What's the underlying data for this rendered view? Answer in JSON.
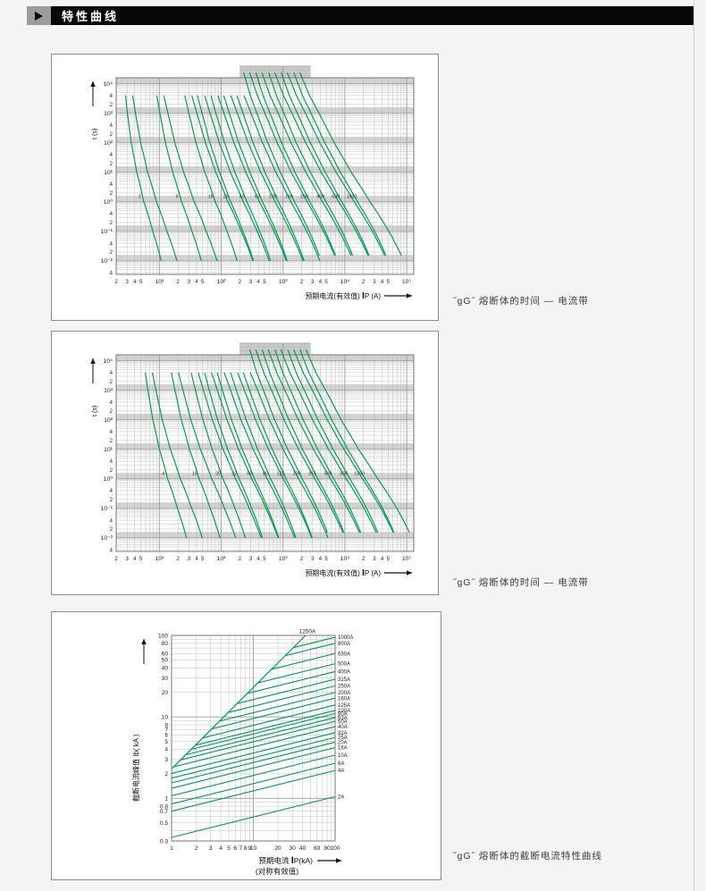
{
  "header": {
    "title": "特性曲线"
  },
  "captions": {
    "c1": "˝gG˝ 熔断体的时间 — 电流带",
    "c2": "˝gG˝ 熔断体的时间 — 电流带",
    "c3": "˝gG˝ 熔断体的截断电流特性曲线"
  },
  "colors": {
    "curve_green": "#009a4e",
    "grid": "#b8b8b8",
    "grid_major": "#9b9b9b",
    "band": "#d2d2d2",
    "tab": "#c9c9c9",
    "plot_border": "#777777",
    "text": "#222222",
    "panel_border": "#8d8d8d",
    "header_bg": "#070707",
    "marker_gray": "#9c9c9c"
  },
  "chart_data": [
    {
      "id": "tc-band-1",
      "type": "line",
      "scale": "log-log",
      "title": "",
      "xlabel": "预期电流(有效值) IP (A)",
      "xlabel_parts": [
        "预期电流(有效值) ",
        "I",
        "P (A)"
      ],
      "ylabel": "t (s)",
      "xlim": [
        2,
        130000
      ],
      "ylim": [
        0.0035,
        16000
      ],
      "x_decades": [
        1,
        2,
        3,
        4,
        5
      ],
      "x_decade_labels": [
        "10¹",
        "10²",
        "10³",
        "10⁴",
        "10⁵"
      ],
      "x_minor_labels": [
        2,
        3,
        4,
        5
      ],
      "y_decades": [
        4,
        3,
        2,
        1,
        0,
        -1,
        -2
      ],
      "y_decade_labels": [
        "10⁴",
        "10³",
        "10²",
        "10¹",
        "10⁰",
        "10⁻¹",
        "10⁻²"
      ],
      "y_minor_labels": [
        4,
        2
      ],
      "grid": true,
      "ratings_A": [
        2,
        6,
        16,
        25,
        40,
        63,
        100,
        160,
        250,
        400,
        630,
        1000
      ],
      "band_logt_anchors": [
        4.38,
        3.6,
        3.0,
        2.0,
        1.0,
        0.0,
        -1.0,
        -2.0
      ],
      "band_mult_min_base": [
        1.32,
        1.42,
        1.52,
        1.75,
        2.15,
        2.8,
        3.9,
        5.35
      ],
      "band_maxmin_ratio": [
        1.25,
        1.3,
        1.35,
        1.42,
        1.5,
        1.6,
        1.7,
        1.8
      ],
      "band_spread_exp": [
        0.02,
        0.06,
        0.1,
        0.16,
        0.22,
        0.28,
        0.33,
        0.36
      ],
      "tab_current_range_A": [
        200,
        2800
      ]
    },
    {
      "id": "tc-band-2",
      "type": "line",
      "scale": "log-log",
      "title": "",
      "xlabel": "预期电流(有效值) IP (A)",
      "xlabel_parts": [
        "预期电流(有效值) ",
        "I",
        "P (A)"
      ],
      "ylabel": "t (s)",
      "xlim": [
        2,
        130000
      ],
      "ylim": [
        0.0035,
        16000
      ],
      "x_decades": [
        1,
        2,
        3,
        4,
        5
      ],
      "x_decade_labels": [
        "10¹",
        "10²",
        "10³",
        "10⁴",
        "10⁵"
      ],
      "x_minor_labels": [
        2,
        3,
        4,
        5
      ],
      "y_decades": [
        4,
        3,
        2,
        1,
        0,
        -1,
        -2
      ],
      "y_decade_labels": [
        "10⁴",
        "10³",
        "10²",
        "10¹",
        "10⁰",
        "10⁻¹",
        "10⁻²"
      ],
      "y_minor_labels": [
        4,
        2
      ],
      "grid": true,
      "ratings_A": [
        4,
        10,
        20,
        32,
        50,
        80,
        125,
        200,
        315,
        500,
        800,
        1250
      ],
      "band_logt_anchors": [
        4.38,
        3.6,
        3.0,
        2.0,
        1.0,
        0.0,
        -1.0,
        -2.0
      ],
      "band_mult_min_base": [
        1.32,
        1.42,
        1.52,
        1.75,
        2.15,
        2.8,
        3.9,
        5.35
      ],
      "band_maxmin_ratio": [
        1.25,
        1.3,
        1.35,
        1.42,
        1.5,
        1.6,
        1.7,
        1.8
      ],
      "band_spread_exp": [
        0.02,
        0.06,
        0.1,
        0.16,
        0.22,
        0.28,
        0.33,
        0.36
      ],
      "tab_current_range_A": [
        200,
        2800
      ]
    },
    {
      "id": "cutoff",
      "type": "line",
      "scale": "log-log",
      "title": "",
      "xlabel": "预期电流 IP(kA)",
      "xlabel_parts": [
        "预期电流 ",
        "I",
        "P(kA)"
      ],
      "xlabel2": "(对称有效值)",
      "ylabel": "截断电流峰值 Ib( kA )",
      "xlim": [
        1,
        100
      ],
      "ylim": [
        0.3,
        100
      ],
      "x_tick_values": [
        1,
        2,
        3,
        4,
        5,
        6,
        7,
        8,
        9,
        10,
        20,
        30,
        40,
        60,
        80,
        100
      ],
      "x_tick_labels": [
        "1",
        "2",
        "3",
        "4",
        "5",
        "6",
        "7",
        "8",
        "9",
        "10",
        "20",
        "30",
        "40",
        "60",
        "80",
        "100"
      ],
      "y_tick_values": [
        100,
        80,
        60,
        50,
        40,
        30,
        20,
        10,
        8,
        7,
        6,
        5,
        4,
        3,
        2,
        1,
        0.8,
        0.7,
        0.5,
        0.3
      ],
      "y_tick_labels": [
        "100",
        "80",
        "60",
        "50",
        "40",
        "30",
        "20",
        "10",
        "8",
        "7",
        "6",
        "5",
        "4",
        "3",
        "2",
        "1",
        "0.8",
        "0.7",
        "0.5",
        "0.3"
      ],
      "grid": true,
      "diagonal": {
        "label": "1250A",
        "from_kA": [
          1,
          2.3
        ],
        "to_kA": [
          43.5,
          100
        ]
      },
      "line_slope_per_decade": 0.25,
      "lines": [
        {
          "label": "1000A",
          "end_kA": 95
        },
        {
          "label": "800A",
          "end_kA": 80
        },
        {
          "label": "630A",
          "end_kA": 60
        },
        {
          "label": "500A",
          "end_kA": 45
        },
        {
          "label": "400A",
          "end_kA": 36
        },
        {
          "label": "315A",
          "end_kA": 29
        },
        {
          "label": "250A",
          "end_kA": 24
        },
        {
          "label": "200A",
          "end_kA": 20
        },
        {
          "label": "160A",
          "end_kA": 17
        },
        {
          "label": "125A",
          "end_kA": 14
        },
        {
          "label": "100A",
          "end_kA": 12
        },
        {
          "label": "80A",
          "end_kA": 11
        },
        {
          "label": "63A",
          "end_kA": 9.8
        },
        {
          "label": "50A",
          "end_kA": 8.8
        },
        {
          "label": "40A",
          "end_kA": 7.6
        },
        {
          "label": "32A",
          "end_kA": 6.4
        },
        {
          "label": "25A",
          "end_kA": 5.6
        },
        {
          "label": "20A",
          "end_kA": 4.9
        },
        {
          "label": "16A",
          "end_kA": 4.2
        },
        {
          "label": "10A",
          "end_kA": 3.4
        },
        {
          "label": "6A",
          "end_kA": 2.7
        },
        {
          "label": "4A",
          "end_kA": 2.2
        },
        {
          "label": "2A",
          "end_kA": 1.05
        }
      ]
    }
  ]
}
